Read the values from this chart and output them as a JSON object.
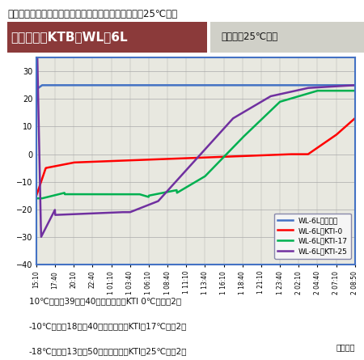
{
  "title": "「キープサーモアイス」と併用した場合の保冷能力（25℃時）",
  "box_label": "ボックス：KTB－WL－6L",
  "room_label": "恒温室：25℃設定",
  "xlabel": "経過時間",
  "ylim": [
    -40,
    35
  ],
  "yticks": [
    -40,
    -30,
    -20,
    -10,
    0,
    10,
    20,
    30
  ],
  "xtick_labels": [
    "15:10",
    "17:40",
    "20:10",
    "22:40",
    "1 01:10",
    "1 03:40",
    "1 06:10",
    "1 08:40",
    "1 11:10",
    "1 13:40",
    "1 16:10",
    "1 18:40",
    "1 21:10",
    "1 23:40",
    "2 02:10",
    "2 04:40",
    "2 07:10",
    "2 08:50"
  ],
  "legend_entries": [
    "WL-6L　恒温室",
    "WL-6L　KTI-0",
    "WL-6L　KTI-17",
    "WL-6L　KTI-25"
  ],
  "line_colors": [
    "#4472C4",
    "#FF0000",
    "#00B050",
    "#7030A0"
  ],
  "bg_color": "#E8E8E0",
  "plot_bg": "#E8E8E0",
  "chart_border": "#4472C4",
  "header_color": "#8B3A3A",
  "header_text_color": "#FFFFFF",
  "note1": "10℃以下を39時間40分維持・・・KTI 0℃用　　2個",
  "note2": "-10℃以下を18時間40分維持・・・KTI－17℃用　2個",
  "note3": "-18℃以下を13時間50分維持・・・KTI－25℃用　2個"
}
